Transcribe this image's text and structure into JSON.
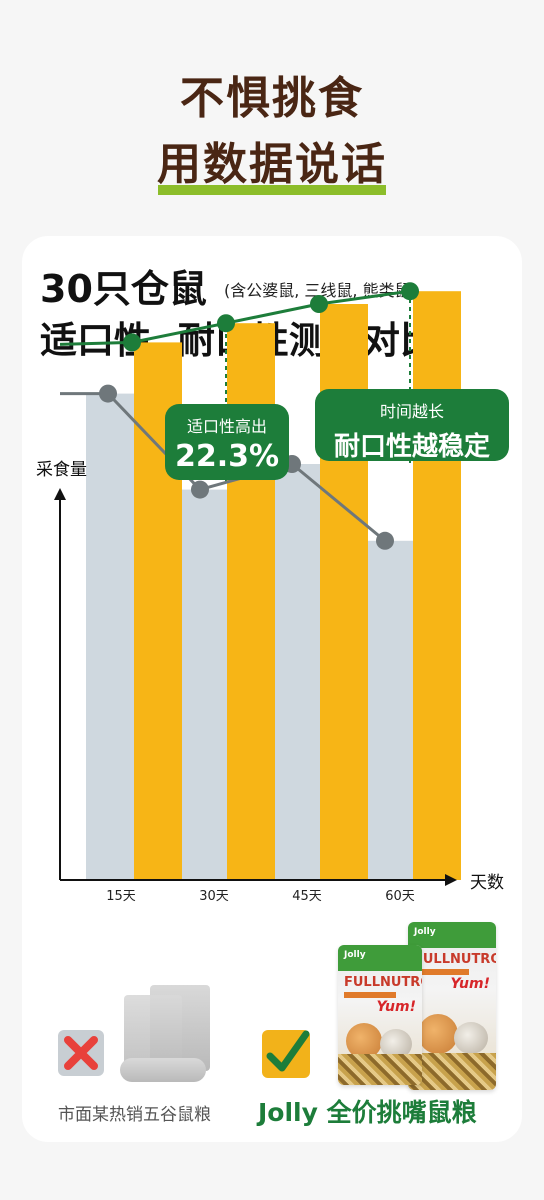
{
  "header": {
    "line1": "不惧挑食",
    "line2": "用数据说话"
  },
  "card": {
    "title_main": "30只仓鼠",
    "title_note": "(含公婆鼠, 三线鼠, 熊类鼠)",
    "title_line2": "适口性, 耐口性测试对比"
  },
  "badges": {
    "b1_small": "适口性高出",
    "b1_big": "22.3%",
    "b2_small": "时间越长",
    "b2_big": "耐口性越稳定"
  },
  "chart_data": {
    "type": "bar",
    "xlabel": "天数",
    "ylabel": "采食量",
    "categories": [
      "15天",
      "30天",
      "45天",
      "60天"
    ],
    "ylim": [
      0,
      100
    ],
    "grid": false,
    "series": [
      {
        "values": [
          76,
          61,
          65,
          53
        ],
        "color": "#cfd8df",
        "line_color": "#6f777b"
      },
      {
        "values": [
          84,
          87,
          90,
          92
        ],
        "color": "#f7b516",
        "line_color": "#1d7d3a"
      }
    ]
  },
  "comparison": {
    "left_caption": "市面某热销五谷鼠粮",
    "right_caption": "Jolly 全价挑嘴鼠粮",
    "pack_brand": "FULLNUTRO",
    "pack_logo": "Jolly",
    "pack_yum": "Yum!",
    "colors": {
      "x_mark": "#e8413b",
      "check_mark": "#1d7d3a"
    }
  }
}
